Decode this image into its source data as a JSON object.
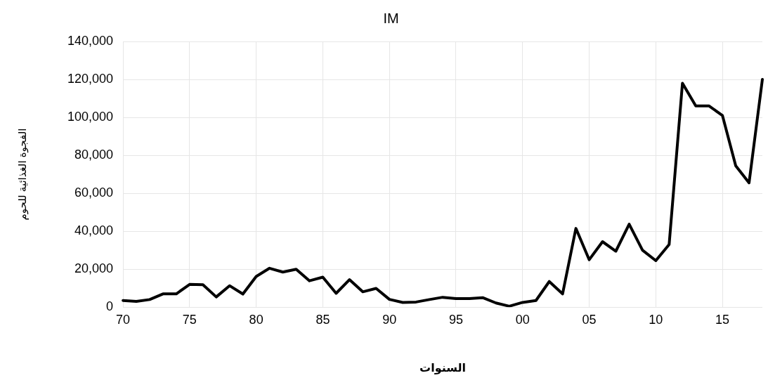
{
  "chart_data": {
    "type": "line",
    "title": "IM",
    "xlabel": "السنوات",
    "ylabel": "الفجوة الغذائية للحوم",
    "categories": [
      "70",
      null,
      null,
      null,
      null,
      "75",
      null,
      null,
      null,
      null,
      "80",
      null,
      null,
      null,
      null,
      "85",
      null,
      null,
      null,
      null,
      "90",
      null,
      null,
      null,
      null,
      "95",
      null,
      null,
      null,
      null,
      "00",
      null,
      null,
      null,
      null,
      "05",
      null,
      null,
      null,
      null,
      "10",
      null,
      null,
      null,
      null,
      "15",
      null,
      null,
      null
    ],
    "series": [
      {
        "color": "#000000",
        "values": [
          3500,
          3000,
          4000,
          7000,
          7000,
          12000,
          11800,
          5400,
          11300,
          6900,
          16200,
          20500,
          18500,
          20000,
          13900,
          15800,
          7300,
          14500,
          8100,
          9900,
          4100,
          2500,
          2700,
          4000,
          5200,
          4500,
          4500,
          5000,
          2200,
          500,
          2500,
          3500,
          13500,
          7000,
          41500,
          25000,
          34500,
          29500,
          43700,
          30000,
          24500,
          33000,
          118000,
          106000,
          106000,
          101000,
          74500,
          65500,
          120000
        ]
      }
    ],
    "ylim": [
      0,
      140000
    ],
    "yticks": [
      {
        "value": 0,
        "label": "0"
      },
      {
        "value": 20000,
        "label": "20,000"
      },
      {
        "value": 40000,
        "label": "40,000"
      },
      {
        "value": 60000,
        "label": "60,000"
      },
      {
        "value": 80000,
        "label": "80,000"
      },
      {
        "value": 100000,
        "label": "100,000"
      },
      {
        "value": 120000,
        "label": "120,000"
      },
      {
        "value": 140000,
        "label": "140,000"
      }
    ],
    "grid": true,
    "legend": false,
    "marker": "none",
    "line_style": "solid"
  }
}
